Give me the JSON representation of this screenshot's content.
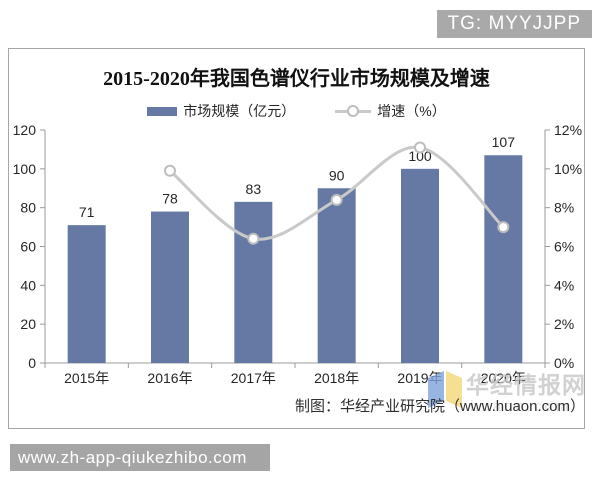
{
  "badge": {
    "text": "TG: MYYJJPP"
  },
  "chart_data": {
    "type": "bar",
    "subtype": "bar-line-combo",
    "title": "2015-2020年我国色谱仪行业市场规模及增速",
    "categories": [
      "2015年",
      "2016年",
      "2017年",
      "2018年",
      "2019年",
      "2020年"
    ],
    "series": [
      {
        "name": "市场规模（亿元）",
        "type": "bar",
        "axis": "left",
        "color": "#6579a4",
        "values": [
          71,
          78,
          83,
          90,
          100,
          107
        ],
        "data_labels": [
          "71",
          "78",
          "83",
          "90",
          "100",
          "107"
        ]
      },
      {
        "name": "增速（%）",
        "type": "line",
        "axis": "right",
        "color": "#c9c9c9",
        "marker": "open-circle",
        "values": [
          null,
          9.9,
          6.4,
          8.4,
          11.1,
          7.0
        ]
      }
    ],
    "left_axis": {
      "min": 0,
      "max": 120,
      "step": 20,
      "ticks": [
        "0",
        "20",
        "40",
        "60",
        "80",
        "100",
        "120"
      ]
    },
    "right_axis": {
      "min": 0,
      "max": 12,
      "step": 2,
      "ticks": [
        "0%",
        "2%",
        "4%",
        "6%",
        "8%",
        "10%",
        "12%"
      ]
    },
    "grid": false,
    "legend_position": "top-center",
    "smooth_line": true
  },
  "source_note": {
    "text": "制图：华经产业研究院（www.huaon.com）"
  },
  "watermark": {
    "brand_text": "华经情报网",
    "ghost_text": "huaon.com",
    "logo": "open-book-icon",
    "logo_colors": {
      "left_page": "#7fa3dc",
      "right_page": "#f2d878"
    }
  },
  "footer_bar": {
    "url_text": "www.zh-app-qiukezhibo.com",
    "background": "#a5a5a5"
  }
}
